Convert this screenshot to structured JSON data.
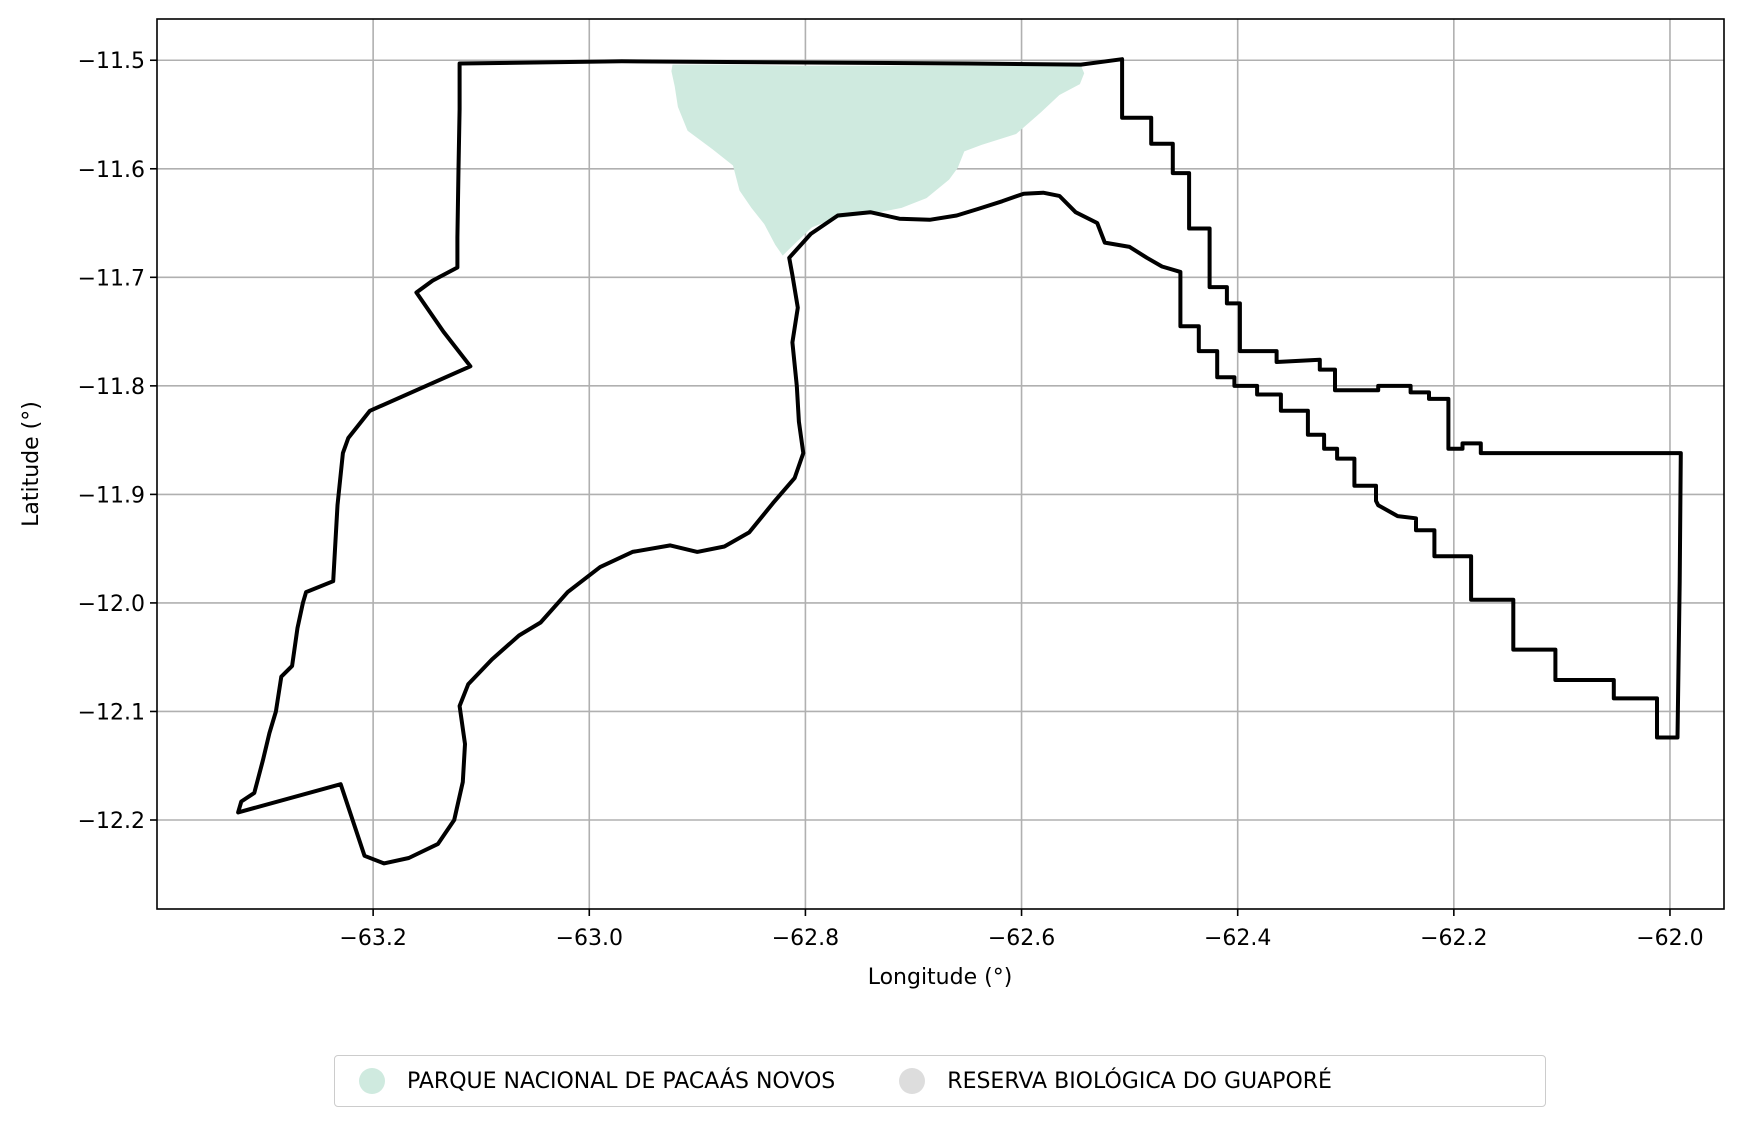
{
  "chart_data": {
    "type": "map",
    "xlabel": "Longitude (°)",
    "ylabel": "Latitude (°)",
    "xlim": [
      -63.4,
      -61.95
    ],
    "ylim": [
      -12.282,
      -11.462
    ],
    "xticks": [
      -63.2,
      -63.0,
      -62.8,
      -62.6,
      -62.4,
      -62.2,
      -62.0
    ],
    "xtick_labels": [
      "−63.2",
      "−63.0",
      "−62.8",
      "−62.6",
      "−62.4",
      "−62.2",
      "−62.0"
    ],
    "yticks": [
      -11.5,
      -11.6,
      -11.7,
      -11.8,
      -11.9,
      -12.0,
      -12.1,
      -12.2
    ],
    "ytick_labels": [
      "−11.5",
      "−11.6",
      "−11.7",
      "−11.8",
      "−11.9",
      "−12.0",
      "−12.1",
      "−12.2"
    ],
    "grid": true,
    "legend_position": "bottom-center",
    "series": [
      {
        "name": "PARQUE NACIONAL DE PACAÁS NOVOS",
        "color": "#cfeadf",
        "kind": "filled-area",
        "polygon": [
          [
            -62.923,
            -11.504
          ],
          [
            -62.871,
            -11.504
          ],
          [
            -62.81,
            -11.505
          ],
          [
            -62.74,
            -11.505
          ],
          [
            -62.66,
            -11.505
          ],
          [
            -62.6,
            -11.505
          ],
          [
            -62.545,
            -11.505
          ],
          [
            -62.542,
            -11.512
          ],
          [
            -62.546,
            -11.522
          ],
          [
            -62.565,
            -11.532
          ],
          [
            -62.582,
            -11.548
          ],
          [
            -62.605,
            -11.568
          ],
          [
            -62.637,
            -11.578
          ],
          [
            -62.653,
            -11.584
          ],
          [
            -62.659,
            -11.599
          ],
          [
            -62.667,
            -11.61
          ],
          [
            -62.688,
            -11.627
          ],
          [
            -62.711,
            -11.636
          ],
          [
            -62.742,
            -11.642
          ],
          [
            -62.774,
            -11.646
          ],
          [
            -62.794,
            -11.654
          ],
          [
            -62.815,
            -11.674
          ],
          [
            -62.821,
            -11.68
          ],
          [
            -62.828,
            -11.67
          ],
          [
            -62.838,
            -11.651
          ],
          [
            -62.85,
            -11.636
          ],
          [
            -62.861,
            -11.62
          ],
          [
            -62.867,
            -11.597
          ],
          [
            -62.886,
            -11.582
          ],
          [
            -62.909,
            -11.565
          ],
          [
            -62.918,
            -11.543
          ],
          [
            -62.921,
            -11.524
          ],
          [
            -62.924,
            -11.51
          ]
        ]
      },
      {
        "name": "RESERVA BIOLÓGICA DO GUAPORÉ",
        "color": "#dddddd",
        "kind": "outline",
        "polygon": [
          [
            -63.12,
            -11.503
          ],
          [
            -62.97,
            -11.501
          ],
          [
            -62.82,
            -11.502
          ],
          [
            -62.65,
            -11.503
          ],
          [
            -62.545,
            -11.504
          ],
          [
            -62.507,
            -11.499
          ],
          [
            -62.507,
            -11.553
          ],
          [
            -62.48,
            -11.553
          ],
          [
            -62.48,
            -11.577
          ],
          [
            -62.46,
            -11.577
          ],
          [
            -62.46,
            -11.604
          ],
          [
            -62.445,
            -11.604
          ],
          [
            -62.445,
            -11.655
          ],
          [
            -62.426,
            -11.655
          ],
          [
            -62.426,
            -11.709
          ],
          [
            -62.41,
            -11.709
          ],
          [
            -62.41,
            -11.724
          ],
          [
            -62.398,
            -11.724
          ],
          [
            -62.398,
            -11.768
          ],
          [
            -62.364,
            -11.768
          ],
          [
            -62.364,
            -11.778
          ],
          [
            -62.324,
            -11.776
          ],
          [
            -62.324,
            -11.785
          ],
          [
            -62.31,
            -11.785
          ],
          [
            -62.31,
            -11.804
          ],
          [
            -62.27,
            -11.804
          ],
          [
            -62.27,
            -11.8
          ],
          [
            -62.24,
            -11.8
          ],
          [
            -62.24,
            -11.806
          ],
          [
            -62.223,
            -11.806
          ],
          [
            -62.223,
            -11.812
          ],
          [
            -62.205,
            -11.812
          ],
          [
            -62.205,
            -11.858
          ],
          [
            -62.192,
            -11.858
          ],
          [
            -62.192,
            -11.853
          ],
          [
            -62.175,
            -11.853
          ],
          [
            -62.175,
            -11.862
          ],
          [
            -62.08,
            -11.862
          ],
          [
            -61.99,
            -11.862
          ],
          [
            -61.991,
            -11.98
          ],
          [
            -61.993,
            -12.124
          ],
          [
            -62.012,
            -12.124
          ],
          [
            -62.012,
            -12.088
          ],
          [
            -62.052,
            -12.088
          ],
          [
            -62.052,
            -12.071
          ],
          [
            -62.106,
            -12.071
          ],
          [
            -62.106,
            -12.043
          ],
          [
            -62.145,
            -12.043
          ],
          [
            -62.145,
            -11.997
          ],
          [
            -62.184,
            -11.997
          ],
          [
            -62.184,
            -11.957
          ],
          [
            -62.218,
            -11.957
          ],
          [
            -62.218,
            -11.933
          ],
          [
            -62.235,
            -11.933
          ],
          [
            -62.235,
            -11.922
          ],
          [
            -62.252,
            -11.92
          ],
          [
            -62.27,
            -11.91
          ],
          [
            -62.272,
            -11.906
          ],
          [
            -62.272,
            -11.892
          ],
          [
            -62.292,
            -11.892
          ],
          [
            -62.292,
            -11.867
          ],
          [
            -62.308,
            -11.867
          ],
          [
            -62.308,
            -11.858
          ],
          [
            -62.32,
            -11.858
          ],
          [
            -62.32,
            -11.845
          ],
          [
            -62.335,
            -11.845
          ],
          [
            -62.335,
            -11.823
          ],
          [
            -62.36,
            -11.823
          ],
          [
            -62.36,
            -11.808
          ],
          [
            -62.382,
            -11.808
          ],
          [
            -62.382,
            -11.8
          ],
          [
            -62.403,
            -11.8
          ],
          [
            -62.403,
            -11.792
          ],
          [
            -62.419,
            -11.792
          ],
          [
            -62.419,
            -11.768
          ],
          [
            -62.436,
            -11.768
          ],
          [
            -62.436,
            -11.745
          ],
          [
            -62.453,
            -11.745
          ],
          [
            -62.453,
            -11.695
          ],
          [
            -62.47,
            -11.69
          ],
          [
            -62.484,
            -11.682
          ],
          [
            -62.5,
            -11.672
          ],
          [
            -62.523,
            -11.668
          ],
          [
            -62.53,
            -11.65
          ],
          [
            -62.55,
            -11.64
          ],
          [
            -62.565,
            -11.625
          ],
          [
            -62.58,
            -11.622
          ],
          [
            -62.598,
            -11.623
          ],
          [
            -62.618,
            -11.63
          ],
          [
            -62.64,
            -11.637
          ],
          [
            -62.66,
            -11.643
          ],
          [
            -62.685,
            -11.647
          ],
          [
            -62.713,
            -11.646
          ],
          [
            -62.74,
            -11.64
          ],
          [
            -62.77,
            -11.643
          ],
          [
            -62.795,
            -11.66
          ],
          [
            -62.815,
            -11.682
          ],
          [
            -62.812,
            -11.698
          ],
          [
            -62.807,
            -11.728
          ],
          [
            -62.812,
            -11.76
          ],
          [
            -62.808,
            -11.8
          ],
          [
            -62.806,
            -11.833
          ],
          [
            -62.802,
            -11.862
          ],
          [
            -62.81,
            -11.885
          ],
          [
            -62.83,
            -11.908
          ],
          [
            -62.852,
            -11.935
          ],
          [
            -62.875,
            -11.948
          ],
          [
            -62.9,
            -11.953
          ],
          [
            -62.925,
            -11.947
          ],
          [
            -62.96,
            -11.953
          ],
          [
            -62.99,
            -11.967
          ],
          [
            -63.02,
            -11.99
          ],
          [
            -63.045,
            -12.018
          ],
          [
            -63.065,
            -12.03
          ],
          [
            -63.09,
            -12.052
          ],
          [
            -63.112,
            -12.075
          ],
          [
            -63.12,
            -12.095
          ],
          [
            -63.115,
            -12.13
          ],
          [
            -63.117,
            -12.165
          ],
          [
            -63.125,
            -12.2
          ],
          [
            -63.14,
            -12.222
          ],
          [
            -63.167,
            -12.235
          ],
          [
            -63.19,
            -12.24
          ],
          [
            -63.208,
            -12.233
          ],
          [
            -63.23,
            -12.167
          ],
          [
            -63.325,
            -12.193
          ],
          [
            -63.322,
            -12.183
          ],
          [
            -63.31,
            -12.175
          ],
          [
            -63.302,
            -12.145
          ],
          [
            -63.296,
            -12.12
          ],
          [
            -63.29,
            -12.1
          ],
          [
            -63.285,
            -12.068
          ],
          [
            -63.275,
            -12.058
          ],
          [
            -63.27,
            -12.023
          ],
          [
            -63.265,
            -12.0
          ],
          [
            -63.262,
            -11.99
          ],
          [
            -63.237,
            -11.98
          ],
          [
            -63.233,
            -11.91
          ],
          [
            -63.228,
            -11.862
          ],
          [
            -63.223,
            -11.848
          ],
          [
            -63.203,
            -11.823
          ],
          [
            -63.11,
            -11.782
          ],
          [
            -63.135,
            -11.75
          ],
          [
            -63.16,
            -11.714
          ],
          [
            -63.145,
            -11.703
          ],
          [
            -63.122,
            -11.691
          ],
          [
            -63.122,
            -11.663
          ],
          [
            -63.121,
            -11.6
          ],
          [
            -63.12,
            -11.545
          ],
          [
            -63.12,
            -11.503
          ]
        ]
      }
    ]
  },
  "legend": {
    "items": [
      {
        "label": "PARQUE NACIONAL DE PACAÁS NOVOS",
        "color": "#cfeadf"
      },
      {
        "label": "RESERVA BIOLÓGICA DO GUAPORÉ",
        "color": "#dddddd"
      }
    ]
  }
}
